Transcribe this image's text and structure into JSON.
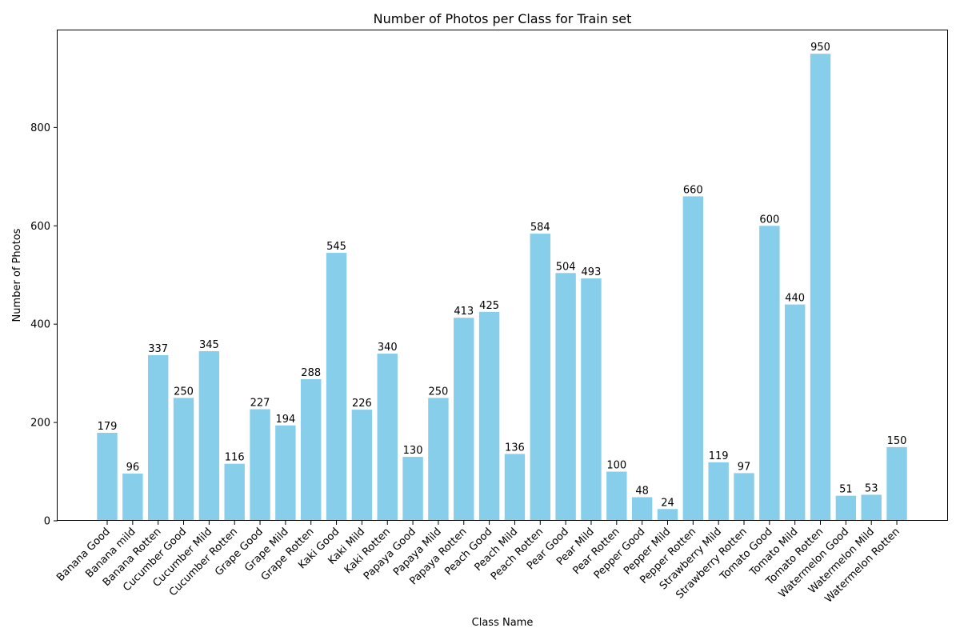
{
  "chart_data": {
    "type": "bar",
    "title": "Number of Photos per Class for Train set",
    "xlabel": "Class Name",
    "ylabel": "Number of Photos",
    "ylim": [
      0,
      997.5
    ],
    "yticks": [
      0,
      200,
      400,
      600,
      800
    ],
    "grid": false,
    "legend": "none",
    "bar_color": "#87ceeb",
    "categories": [
      "Banana Good",
      "Banana mild",
      "Banana Rotten",
      "Cucumber Good",
      "Cucumber Mild",
      "Cucumber Rotten",
      "Grape Good",
      "Grape Mild",
      "Grape Rotten",
      "Kaki Good",
      "Kaki Mild",
      "Kaki Rotten",
      "Papaya Good",
      "Papaya Mild",
      "Papaya Rotten",
      "Peach Good",
      "Peach Mild",
      "Peach Rotten",
      "Pear Good",
      "Pear Mild",
      "Pear Rotten",
      "Pepper Good",
      "Pepper Mild",
      "Pepper Rotten",
      "Strawberry Mild",
      "Strawberry Rotten",
      "Tomato Good",
      "Tomato Mild",
      "Tomato Rotten",
      "Watermelon Good",
      "Watermelon Mild",
      "Watermelon Rotten"
    ],
    "values": [
      179,
      96,
      337,
      250,
      345,
      116,
      227,
      194,
      288,
      545,
      226,
      340,
      130,
      250,
      413,
      425,
      136,
      584,
      504,
      493,
      100,
      48,
      24,
      660,
      119,
      97,
      600,
      440,
      950,
      51,
      53,
      150
    ]
  }
}
